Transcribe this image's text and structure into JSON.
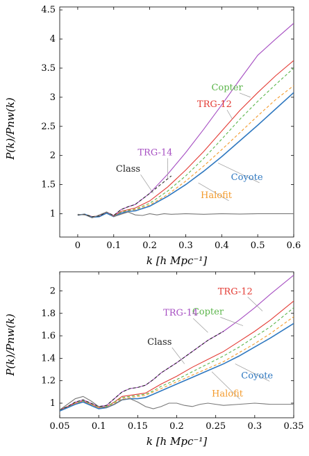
{
  "chart_data": [
    {
      "type": "line",
      "xlabel": "k [h Mpc⁻¹]",
      "ylabel": "P(k)/Pnw(k)",
      "xlim": [
        -0.05,
        0.6
      ],
      "ylim": [
        0.6,
        4.55
      ],
      "xticks": [
        0,
        0.1,
        0.2,
        0.3,
        0.4,
        0.5,
        0.6
      ],
      "xtick_labels": [
        "0",
        "0.1",
        "0.2",
        "0.3",
        "0.4",
        "0.5",
        "0.6"
      ],
      "yticks": [
        1,
        1.5,
        2,
        2.5,
        3,
        3.5,
        4,
        4.5
      ],
      "ytick_labels": [
        "1",
        "1.5",
        "2",
        "2.5",
        "3",
        "3.5",
        "4",
        "4.5"
      ],
      "series": [
        {
          "name": "TRG-14",
          "color": "#a64ec2",
          "dash": "solid",
          "x": [
            0,
            0.02,
            0.04,
            0.06,
            0.08,
            0.1,
            0.12,
            0.14,
            0.16,
            0.2,
            0.25,
            0.3,
            0.35,
            0.4,
            0.45,
            0.5,
            0.55,
            0.6
          ],
          "y": [
            0.98,
            0.99,
            0.95,
            0.96,
            1.03,
            0.97,
            1.07,
            1.12,
            1.16,
            1.35,
            1.68,
            2.05,
            2.45,
            2.87,
            3.3,
            3.72,
            4.0,
            4.27
          ]
        },
        {
          "name": "TRG-12",
          "color": "#e33a33",
          "dash": "solid",
          "x": [
            0,
            0.02,
            0.04,
            0.06,
            0.08,
            0.1,
            0.12,
            0.14,
            0.16,
            0.2,
            0.25,
            0.3,
            0.35,
            0.4,
            0.45,
            0.5,
            0.55,
            0.6
          ],
          "y": [
            0.98,
            0.99,
            0.95,
            0.96,
            1.02,
            0.96,
            1.04,
            1.07,
            1.1,
            1.22,
            1.46,
            1.75,
            2.07,
            2.42,
            2.77,
            3.08,
            3.37,
            3.63
          ]
        },
        {
          "name": "Copter",
          "color": "#5bb54a",
          "dash": "dashed",
          "x": [
            0,
            0.02,
            0.04,
            0.06,
            0.08,
            0.1,
            0.12,
            0.14,
            0.16,
            0.2,
            0.25,
            0.3,
            0.35,
            0.4,
            0.45,
            0.5,
            0.55,
            0.6
          ],
          "y": [
            0.98,
            0.99,
            0.95,
            0.96,
            1.02,
            0.96,
            1.03,
            1.06,
            1.08,
            1.18,
            1.39,
            1.65,
            1.95,
            2.28,
            2.62,
            2.93,
            3.22,
            3.5
          ]
        },
        {
          "name": "Halofit",
          "color": "#f39a2b",
          "dash": "dashed",
          "x": [
            0,
            0.02,
            0.04,
            0.06,
            0.08,
            0.1,
            0.12,
            0.14,
            0.16,
            0.2,
            0.25,
            0.3,
            0.35,
            0.4,
            0.45,
            0.5,
            0.55,
            0.6
          ],
          "y": [
            0.98,
            0.99,
            0.95,
            0.96,
            1.02,
            0.96,
            1.02,
            1.05,
            1.07,
            1.15,
            1.33,
            1.56,
            1.82,
            2.1,
            2.39,
            2.68,
            2.96,
            3.2
          ]
        },
        {
          "name": "Coyote",
          "color": "#2f78c0",
          "dash": "solid",
          "x": [
            0,
            0.02,
            0.04,
            0.06,
            0.08,
            0.1,
            0.12,
            0.14,
            0.16,
            0.2,
            0.25,
            0.3,
            0.35,
            0.4,
            0.45,
            0.5,
            0.55,
            0.6
          ],
          "y": [
            0.98,
            0.99,
            0.94,
            0.95,
            1.01,
            0.95,
            1.01,
            1.04,
            1.05,
            1.13,
            1.3,
            1.5,
            1.73,
            1.98,
            2.25,
            2.52,
            2.8,
            3.08
          ]
        },
        {
          "name": "Class",
          "color": "#222222",
          "dash": "dashed",
          "x": [
            0,
            0.02,
            0.04,
            0.06,
            0.08,
            0.1,
            0.12,
            0.14,
            0.16,
            0.2,
            0.22,
            0.24,
            0.26
          ],
          "y": [
            0.98,
            0.99,
            0.95,
            0.96,
            1.03,
            0.97,
            1.07,
            1.12,
            1.16,
            1.35,
            1.45,
            1.55,
            1.65
          ]
        },
        {
          "name": "",
          "color": "#777777",
          "dash": "solid",
          "x": [
            0,
            0.02,
            0.04,
            0.06,
            0.08,
            0.1,
            0.12,
            0.14,
            0.16,
            0.18,
            0.2,
            0.22,
            0.24,
            0.26,
            0.3,
            0.35,
            0.4,
            0.45,
            0.5,
            0.55,
            0.6
          ],
          "y": [
            0.99,
            0.98,
            0.93,
            0.98,
            1.03,
            0.95,
            0.99,
            1.03,
            0.98,
            0.97,
            1.0,
            0.98,
            1.0,
            0.99,
            1.0,
            0.99,
            1.0,
            0.995,
            1.0,
            1.0,
            1.0
          ]
        }
      ],
      "annotations": [
        {
          "text": "Copter",
          "color": "#5bb54a",
          "x": 0.415,
          "y": 3.12,
          "ax": 0.48,
          "ay": 3.0
        },
        {
          "text": "TRG-12",
          "color": "#e33a33",
          "x": 0.38,
          "y": 2.83,
          "ax": 0.43,
          "ay": 2.62
        },
        {
          "text": "TRG-14",
          "color": "#a64ec2",
          "x": 0.215,
          "y": 2.0,
          "ax": 0.25,
          "ay": 1.6
        },
        {
          "text": "Class",
          "color": "#222222",
          "x": 0.14,
          "y": 1.72,
          "ax": 0.21,
          "ay": 1.35
        },
        {
          "text": "Coyote",
          "color": "#2f78c0",
          "x": 0.47,
          "y": 1.58,
          "ax": 0.39,
          "ay": 1.87
        },
        {
          "text": "Halofit",
          "color": "#f39a2b",
          "x": 0.385,
          "y": 1.27,
          "ax": 0.335,
          "ay": 1.53
        }
      ]
    },
    {
      "type": "line",
      "xlabel": "k [h Mpc⁻¹]",
      "ylabel": "P(k)/Pnw(k)",
      "xlim": [
        0.05,
        0.35
      ],
      "ylim": [
        0.87,
        2.17
      ],
      "xticks": [
        0.05,
        0.1,
        0.15,
        0.2,
        0.25,
        0.3,
        0.35
      ],
      "xtick_labels": [
        "0.05",
        "0.1",
        "0.15",
        "0.2",
        "0.25",
        "0.3",
        "0.35"
      ],
      "yticks": [
        1,
        1.2,
        1.4,
        1.6,
        1.8,
        2
      ],
      "ytick_labels": [
        "1",
        "1.2",
        "1.4",
        "1.6",
        "1.8",
        "2"
      ],
      "series": [
        {
          "name": "TRG-14",
          "color": "#a64ec2",
          "dash": "solid",
          "x": [
            0.05,
            0.06,
            0.07,
            0.08,
            0.09,
            0.1,
            0.11,
            0.12,
            0.13,
            0.14,
            0.15,
            0.16,
            0.17,
            0.18,
            0.2,
            0.22,
            0.24,
            0.26,
            0.28,
            0.3,
            0.32,
            0.35
          ],
          "y": [
            0.94,
            0.97,
            1.01,
            1.03,
            1.0,
            0.97,
            0.98,
            1.04,
            1.1,
            1.13,
            1.14,
            1.16,
            1.21,
            1.27,
            1.36,
            1.46,
            1.56,
            1.64,
            1.74,
            1.85,
            1.97,
            2.14
          ]
        },
        {
          "name": "TRG-12",
          "color": "#e33a33",
          "dash": "solid",
          "x": [
            0.05,
            0.06,
            0.07,
            0.08,
            0.09,
            0.1,
            0.11,
            0.12,
            0.13,
            0.14,
            0.15,
            0.16,
            0.17,
            0.18,
            0.2,
            0.22,
            0.24,
            0.26,
            0.28,
            0.3,
            0.32,
            0.35
          ],
          "y": [
            0.94,
            0.97,
            1.0,
            1.02,
            0.99,
            0.96,
            0.97,
            1.01,
            1.06,
            1.07,
            1.08,
            1.09,
            1.13,
            1.17,
            1.24,
            1.32,
            1.39,
            1.46,
            1.55,
            1.64,
            1.74,
            1.91
          ]
        },
        {
          "name": "Copter",
          "color": "#5bb54a",
          "dash": "dashed",
          "x": [
            0.05,
            0.06,
            0.07,
            0.08,
            0.09,
            0.1,
            0.11,
            0.12,
            0.13,
            0.14,
            0.15,
            0.16,
            0.17,
            0.18,
            0.2,
            0.22,
            0.24,
            0.26,
            0.28,
            0.3,
            0.32,
            0.35
          ],
          "y": [
            0.94,
            0.97,
            1.0,
            1.02,
            0.99,
            0.96,
            0.97,
            1.01,
            1.05,
            1.06,
            1.07,
            1.08,
            1.11,
            1.15,
            1.21,
            1.28,
            1.35,
            1.42,
            1.5,
            1.59,
            1.68,
            1.85
          ]
        },
        {
          "name": "Halofit",
          "color": "#f39a2b",
          "dash": "dashed",
          "x": [
            0.05,
            0.06,
            0.07,
            0.08,
            0.09,
            0.1,
            0.11,
            0.12,
            0.13,
            0.14,
            0.15,
            0.16,
            0.17,
            0.18,
            0.2,
            0.22,
            0.24,
            0.26,
            0.28,
            0.3,
            0.32,
            0.35
          ],
          "y": [
            0.94,
            0.97,
            1.0,
            1.01,
            0.99,
            0.96,
            0.96,
            1.0,
            1.04,
            1.05,
            1.06,
            1.07,
            1.1,
            1.13,
            1.19,
            1.25,
            1.31,
            1.37,
            1.45,
            1.53,
            1.62,
            1.77
          ]
        },
        {
          "name": "Coyote",
          "color": "#2f78c0",
          "dash": "solid",
          "x": [
            0.05,
            0.06,
            0.07,
            0.08,
            0.09,
            0.1,
            0.11,
            0.12,
            0.13,
            0.14,
            0.15,
            0.16,
            0.17,
            0.18,
            0.2,
            0.22,
            0.24,
            0.26,
            0.28,
            0.3,
            0.32,
            0.35
          ],
          "y": [
            0.93,
            0.96,
            0.99,
            1.01,
            0.98,
            0.95,
            0.96,
            0.99,
            1.03,
            1.04,
            1.04,
            1.05,
            1.08,
            1.11,
            1.17,
            1.23,
            1.29,
            1.35,
            1.42,
            1.5,
            1.58,
            1.71
          ]
        },
        {
          "name": "Class",
          "color": "#222222",
          "dash": "dashed",
          "x": [
            0.05,
            0.06,
            0.07,
            0.08,
            0.09,
            0.1,
            0.11,
            0.12,
            0.13,
            0.14,
            0.15,
            0.16,
            0.17,
            0.18,
            0.2,
            0.22,
            0.24,
            0.26
          ],
          "y": [
            0.94,
            0.97,
            1.01,
            1.03,
            1.0,
            0.97,
            0.98,
            1.04,
            1.1,
            1.13,
            1.14,
            1.16,
            1.21,
            1.27,
            1.36,
            1.46,
            1.56,
            1.64
          ]
        },
        {
          "name": "",
          "color": "#777777",
          "dash": "solid",
          "x": [
            0.05,
            0.06,
            0.07,
            0.08,
            0.09,
            0.1,
            0.11,
            0.12,
            0.13,
            0.14,
            0.15,
            0.16,
            0.17,
            0.18,
            0.19,
            0.2,
            0.21,
            0.22,
            0.23,
            0.24,
            0.25,
            0.26,
            0.28,
            0.3,
            0.32,
            0.35
          ],
          "y": [
            0.94,
            0.99,
            1.04,
            1.06,
            1.02,
            0.97,
            0.96,
            0.99,
            1.03,
            1.04,
            1.01,
            0.97,
            0.95,
            0.97,
            1.0,
            1.0,
            0.98,
            0.97,
            0.99,
            1.0,
            0.99,
            0.98,
            0.99,
            1.0,
            0.99,
            0.99
          ]
        }
      ],
      "annotations": [
        {
          "text": "TRG-12",
          "color": "#e33a33",
          "x": 0.275,
          "y": 1.97,
          "ax": 0.31,
          "ay": 1.82
        },
        {
          "text": "Copter",
          "color": "#5bb54a",
          "x": 0.24,
          "y": 1.79,
          "ax": 0.285,
          "ay": 1.69
        },
        {
          "text": "TRG-14",
          "color": "#a64ec2",
          "x": 0.205,
          "y": 1.78,
          "ax": 0.24,
          "ay": 1.63
        },
        {
          "text": "Class",
          "color": "#222222",
          "x": 0.178,
          "y": 1.52,
          "ax": 0.21,
          "ay": 1.35
        },
        {
          "text": "Coyote",
          "color": "#2f78c0",
          "x": 0.303,
          "y": 1.22,
          "ax": 0.275,
          "ay": 1.35
        },
        {
          "text": "Halofit",
          "color": "#f39a2b",
          "x": 0.265,
          "y": 1.06,
          "ax": 0.245,
          "ay": 1.28
        }
      ]
    }
  ]
}
